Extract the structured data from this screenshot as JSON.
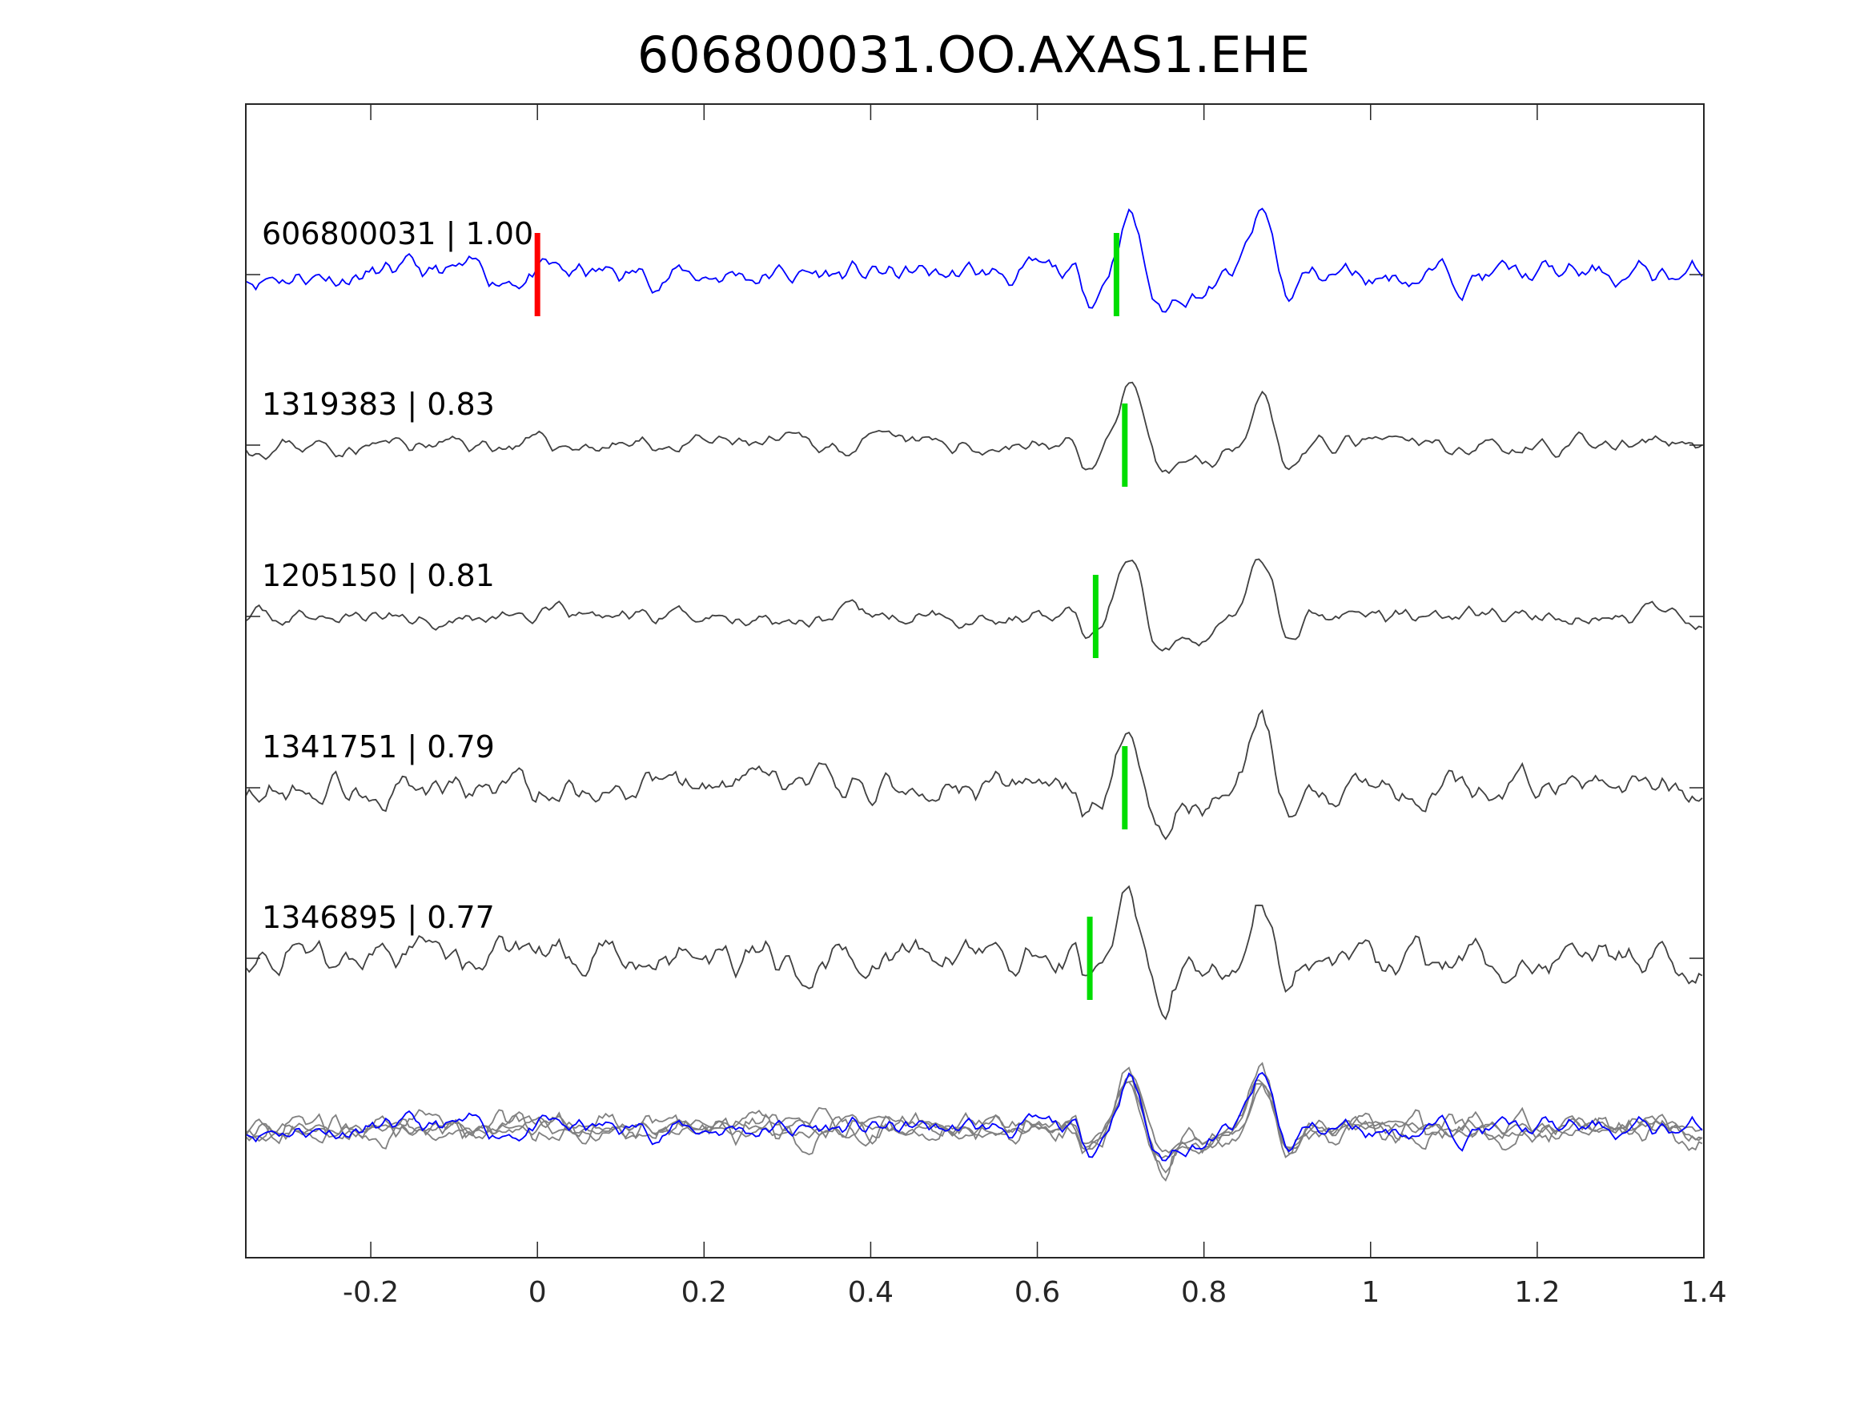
{
  "chart_data": {
    "type": "line",
    "title": "606800031.OO.AXAS1.EHE",
    "xlabel": "",
    "ylabel": "",
    "xlim": [
      -0.35,
      1.4
    ],
    "xticks": [
      -0.2,
      0,
      0.2,
      0.4,
      0.6,
      0.8,
      1,
      1.2,
      1.4
    ],
    "xtick_labels": [
      "-0.2",
      "0",
      "0.2",
      "0.4",
      "0.6",
      "0.8",
      "1",
      "1.2",
      "1.4"
    ],
    "grid": false,
    "traces": [
      {
        "label": "606800031 | 1.00",
        "color": "#0000ff",
        "noise": 0.8,
        "seed": 11,
        "picks": [
          {
            "x": 0.0,
            "color": "#ff0000"
          },
          {
            "x": 0.695,
            "color": "#00dd00"
          }
        ]
      },
      {
        "label": "1319383 | 0.83",
        "color": "#404040",
        "noise": 0.55,
        "seed": 23,
        "picks": [
          {
            "x": 0.705,
            "color": "#00dd00"
          }
        ]
      },
      {
        "label": "1205150 | 0.81",
        "color": "#404040",
        "noise": 0.55,
        "seed": 37,
        "picks": [
          {
            "x": 0.67,
            "color": "#00dd00"
          }
        ]
      },
      {
        "label": "1341751 | 0.79",
        "color": "#404040",
        "noise": 1.0,
        "seed": 53,
        "picks": [
          {
            "x": 0.705,
            "color": "#00dd00"
          }
        ]
      },
      {
        "label": "1346895 | 0.77",
        "color": "#404040",
        "noise": 1.1,
        "seed": 71,
        "picks": [
          {
            "x": 0.663,
            "color": "#00dd00"
          }
        ]
      }
    ],
    "stack": {
      "colors": {
        "reference": "#0000ff",
        "others": "#808080"
      }
    }
  }
}
